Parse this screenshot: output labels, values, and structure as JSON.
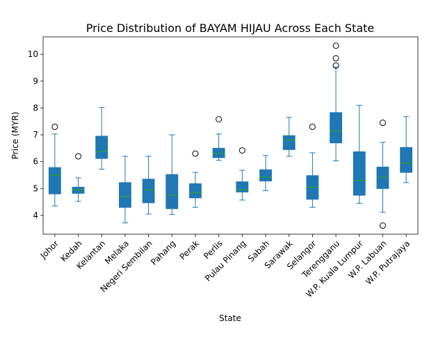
{
  "chart_data": {
    "type": "box",
    "title": "Price Distribution of BAYAM HIJAU Across Each State",
    "xlabel": "State",
    "ylabel": "Price (MYR)",
    "ylim": [
      3.3,
      10.65
    ],
    "yticks": [
      4,
      5,
      6,
      7,
      8,
      9,
      10
    ],
    "grid": false,
    "box_color": "#1f77b4",
    "median_color": "#2ca02c",
    "categories": [
      "Johor",
      "Kedah",
      "Kelantan",
      "Melaka",
      "Negeri Sembilan",
      "Pahang",
      "Perak",
      "Perlis",
      "Pulau Pinang",
      "Sabah",
      "Sarawak",
      "Selangor",
      "Terengganu",
      "W.P. Kuala Lumpur",
      "W.P. Labuan",
      "W.P. Putrajaya"
    ],
    "boxes": [
      {
        "whisker_low": 4.35,
        "q1": 4.8,
        "median": 5.5,
        "q3": 5.78,
        "whisker_high": 7.03,
        "outliers": [
          7.3
        ]
      },
      {
        "whisker_low": 4.52,
        "q1": 4.82,
        "median": 4.95,
        "q3": 5.05,
        "whisker_high": 5.4,
        "outliers": [
          6.2
        ]
      },
      {
        "whisker_low": 5.72,
        "q1": 6.12,
        "median": 6.38,
        "q3": 6.95,
        "whisker_high": 8.02,
        "outliers": []
      },
      {
        "whisker_low": 3.72,
        "q1": 4.3,
        "median": 4.7,
        "q3": 5.22,
        "whisker_high": 6.2,
        "outliers": []
      },
      {
        "whisker_low": 4.05,
        "q1": 4.47,
        "median": 4.95,
        "q3": 5.35,
        "whisker_high": 6.2,
        "outliers": []
      },
      {
        "whisker_low": 4.03,
        "q1": 4.25,
        "median": 4.75,
        "q3": 5.52,
        "whisker_high": 7.0,
        "outliers": []
      },
      {
        "whisker_low": 4.3,
        "q1": 4.65,
        "median": 4.85,
        "q3": 5.18,
        "whisker_high": 5.6,
        "outliers": [
          6.3
        ]
      },
      {
        "whisker_low": 6.05,
        "q1": 6.15,
        "median": 6.3,
        "q3": 6.5,
        "whisker_high": 7.03,
        "outliers": [
          7.58
        ]
      },
      {
        "whisker_low": 4.57,
        "q1": 4.87,
        "median": 4.95,
        "q3": 5.25,
        "whisker_high": 5.68,
        "outliers": [
          6.42
        ]
      },
      {
        "whisker_low": 4.92,
        "q1": 5.28,
        "median": 5.42,
        "q3": 5.7,
        "whisker_high": 6.23,
        "outliers": []
      },
      {
        "whisker_low": 6.2,
        "q1": 6.45,
        "median": 6.8,
        "q3": 6.97,
        "whisker_high": 7.65,
        "outliers": []
      },
      {
        "whisker_low": 4.3,
        "q1": 4.6,
        "median": 5.05,
        "q3": 5.48,
        "whisker_high": 6.33,
        "outliers": [
          7.3
        ]
      },
      {
        "whisker_low": 6.03,
        "q1": 6.7,
        "median": 7.15,
        "q3": 7.83,
        "whisker_high": 9.52,
        "outliers": [
          9.58,
          9.85,
          10.32
        ]
      },
      {
        "whisker_low": 4.45,
        "q1": 4.75,
        "median": 5.3,
        "q3": 6.37,
        "whisker_high": 8.1,
        "outliers": []
      },
      {
        "whisker_low": 4.12,
        "q1": 5.0,
        "median": 5.42,
        "q3": 5.8,
        "whisker_high": 6.72,
        "outliers": [
          3.62,
          7.45
        ]
      },
      {
        "whisker_low": 5.22,
        "q1": 5.6,
        "median": 5.95,
        "q3": 6.53,
        "whisker_high": 7.68,
        "outliers": []
      }
    ]
  }
}
